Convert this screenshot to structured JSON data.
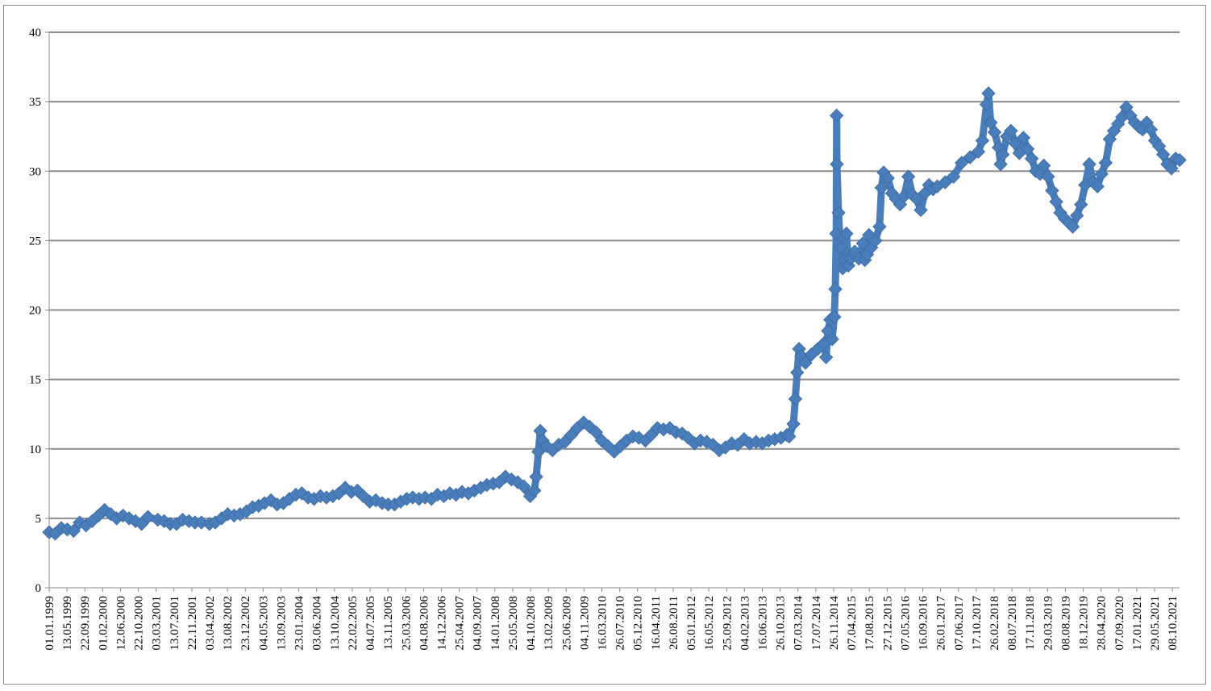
{
  "chart_data": {
    "type": "line",
    "title": "",
    "xlabel": "",
    "ylabel": "",
    "ylim": [
      0,
      40
    ],
    "yticks": [
      0,
      5,
      10,
      15,
      20,
      25,
      30,
      35,
      40
    ],
    "grid": true,
    "legend": "none",
    "marker": "diamond",
    "colors": {
      "series": "#4a7ebb",
      "grid": "#8c8c8c",
      "axis": "#8c8c8c"
    },
    "xdomain": [
      "01.01.1999",
      "30.11.2021"
    ],
    "xticks": [
      "01.01.1999",
      "13.05.1999",
      "22.09.1999",
      "01.02.2000",
      "12.06.2000",
      "22.10.2000",
      "03.03.2001",
      "13.07.2001",
      "22.11.2001",
      "03.04.2002",
      "13.08.2002",
      "23.12.2002",
      "04.05.2003",
      "13.09.2003",
      "23.01.2004",
      "03.06.2004",
      "13.10.2004",
      "22.02.2005",
      "04.07.2005",
      "13.11.2005",
      "25.03.2006",
      "04.08.2006",
      "14.12.2006",
      "25.04.2007",
      "04.09.2007",
      "14.01.2008",
      "25.05.2008",
      "04.10.2008",
      "13.02.2009",
      "25.06.2009",
      "04.11.2009",
      "16.03.2010",
      "26.07.2010",
      "05.12.2010",
      "16.04.2011",
      "26.08.2011",
      "05.01.2012",
      "16.05.2012",
      "25.09.2012",
      "04.02.2013",
      "16.06.2013",
      "26.10.2013",
      "07.03.2014",
      "17.07.2014",
      "26.11.2014",
      "07.04.2015",
      "17.08.2015",
      "27.12.2015",
      "07.05.2016",
      "16.09.2016",
      "26.01.2017",
      "07.06.2017",
      "17.10.2017",
      "26.02.2018",
      "08.07.2018",
      "17.11.2018",
      "29.03.2019",
      "08.08.2019",
      "18.12.2019",
      "28.04.2020",
      "07.09.2020",
      "17.01.2021",
      "29.05.2021",
      "08.10.2021"
    ],
    "series": [
      {
        "name": "",
        "points": [
          [
            "01.01.1999",
            4.0
          ],
          [
            "15.02.1999",
            3.9
          ],
          [
            "01.04.1999",
            4.3
          ],
          [
            "15.05.1999",
            4.2
          ],
          [
            "01.07.1999",
            4.1
          ],
          [
            "15.08.1999",
            4.7
          ],
          [
            "01.10.1999",
            4.5
          ],
          [
            "15.11.1999",
            4.8
          ],
          [
            "01.01.2000",
            5.2
          ],
          [
            "15.02.2000",
            5.6
          ],
          [
            "01.04.2000",
            5.3
          ],
          [
            "15.05.2000",
            5.0
          ],
          [
            "01.07.2000",
            5.2
          ],
          [
            "15.08.2000",
            5.0
          ],
          [
            "01.10.2000",
            4.8
          ],
          [
            "15.11.2000",
            4.6
          ],
          [
            "01.01.2001",
            5.1
          ],
          [
            "15.03.2001",
            4.9
          ],
          [
            "01.05.2001",
            4.8
          ],
          [
            "15.06.2001",
            4.6
          ],
          [
            "01.08.2001",
            4.6
          ],
          [
            "15.09.2001",
            4.9
          ],
          [
            "01.11.2001",
            4.8
          ],
          [
            "15.12.2001",
            4.7
          ],
          [
            "01.02.2002",
            4.7
          ],
          [
            "01.04.2002",
            4.6
          ],
          [
            "15.05.2002",
            4.7
          ],
          [
            "01.07.2002",
            5.0
          ],
          [
            "15.08.2002",
            5.3
          ],
          [
            "01.10.2002",
            5.2
          ],
          [
            "15.11.2002",
            5.3
          ],
          [
            "01.01.2003",
            5.5
          ],
          [
            "15.02.2003",
            5.8
          ],
          [
            "01.04.2003",
            5.9
          ],
          [
            "15.05.2003",
            6.1
          ],
          [
            "01.07.2003",
            6.3
          ],
          [
            "15.08.2003",
            6.0
          ],
          [
            "01.10.2003",
            6.1
          ],
          [
            "15.11.2003",
            6.4
          ],
          [
            "01.01.2004",
            6.7
          ],
          [
            "15.02.2004",
            6.8
          ],
          [
            "01.04.2004",
            6.5
          ],
          [
            "15.05.2004",
            6.4
          ],
          [
            "01.07.2004",
            6.6
          ],
          [
            "15.08.2004",
            6.5
          ],
          [
            "01.10.2004",
            6.6
          ],
          [
            "15.11.2004",
            6.8
          ],
          [
            "01.01.2005",
            7.2
          ],
          [
            "15.02.2005",
            6.9
          ],
          [
            "01.04.2005",
            7.0
          ],
          [
            "15.05.2005",
            6.6
          ],
          [
            "01.07.2005",
            6.2
          ],
          [
            "15.08.2005",
            6.3
          ],
          [
            "01.10.2005",
            6.1
          ],
          [
            "15.11.2005",
            6.0
          ],
          [
            "01.01.2006",
            6.0
          ],
          [
            "15.02.2006",
            6.2
          ],
          [
            "01.04.2006",
            6.4
          ],
          [
            "15.05.2006",
            6.5
          ],
          [
            "01.07.2006",
            6.4
          ],
          [
            "15.08.2006",
            6.5
          ],
          [
            "01.10.2006",
            6.4
          ],
          [
            "15.11.2006",
            6.7
          ],
          [
            "01.01.2007",
            6.6
          ],
          [
            "15.02.2007",
            6.8
          ],
          [
            "01.04.2007",
            6.7
          ],
          [
            "15.05.2007",
            6.9
          ],
          [
            "01.07.2007",
            6.8
          ],
          [
            "15.08.2007",
            7.0
          ],
          [
            "01.10.2007",
            7.2
          ],
          [
            "15.11.2007",
            7.4
          ],
          [
            "01.01.2008",
            7.5
          ],
          [
            "15.02.2008",
            7.6
          ],
          [
            "01.04.2008",
            8.0
          ],
          [
            "15.05.2008",
            7.8
          ],
          [
            "01.07.2008",
            7.6
          ],
          [
            "15.08.2008",
            7.3
          ],
          [
            "01.10.2008",
            6.6
          ],
          [
            "01.11.2008",
            7.0
          ],
          [
            "15.11.2008",
            8.0
          ],
          [
            "01.12.2008",
            9.8
          ],
          [
            "15.12.2008",
            11.3
          ],
          [
            "01.01.2009",
            10.6
          ],
          [
            "01.02.2009",
            10.2
          ],
          [
            "15.03.2009",
            9.9
          ],
          [
            "01.05.2009",
            10.3
          ],
          [
            "15.06.2009",
            10.5
          ],
          [
            "01.08.2009",
            11.0
          ],
          [
            "15.09.2009",
            11.5
          ],
          [
            "01.11.2009",
            11.9
          ],
          [
            "15.12.2009",
            11.6
          ],
          [
            "01.02.2010",
            11.2
          ],
          [
            "15.03.2010",
            10.6
          ],
          [
            "01.05.2010",
            10.2
          ],
          [
            "15.06.2010",
            9.8
          ],
          [
            "01.08.2010",
            10.2
          ],
          [
            "15.09.2010",
            10.6
          ],
          [
            "01.11.2010",
            10.9
          ],
          [
            "15.12.2010",
            10.8
          ],
          [
            "01.02.2011",
            10.6
          ],
          [
            "15.03.2011",
            11.0
          ],
          [
            "01.05.2011",
            11.5
          ],
          [
            "15.06.2011",
            11.4
          ],
          [
            "01.08.2011",
            11.5
          ],
          [
            "15.09.2011",
            11.2
          ],
          [
            "01.11.2011",
            11.1
          ],
          [
            "15.12.2011",
            10.8
          ],
          [
            "01.02.2012",
            10.4
          ],
          [
            "15.03.2012",
            10.6
          ],
          [
            "01.05.2012",
            10.5
          ],
          [
            "15.06.2012",
            10.3
          ],
          [
            "01.08.2012",
            9.9
          ],
          [
            "15.09.2012",
            10.1
          ],
          [
            "01.11.2012",
            10.4
          ],
          [
            "15.12.2012",
            10.3
          ],
          [
            "01.02.2013",
            10.7
          ],
          [
            "15.03.2013",
            10.4
          ],
          [
            "01.05.2013",
            10.5
          ],
          [
            "15.06.2013",
            10.4
          ],
          [
            "01.08.2013",
            10.6
          ],
          [
            "15.09.2013",
            10.7
          ],
          [
            "01.11.2013",
            10.8
          ],
          [
            "15.12.2013",
            11.0
          ],
          [
            "01.01.2014",
            10.9
          ],
          [
            "01.02.2014",
            11.8
          ],
          [
            "15.02.2014",
            13.6
          ],
          [
            "01.03.2014",
            15.5
          ],
          [
            "15.03.2014",
            17.2
          ],
          [
            "01.04.2014",
            16.7
          ],
          [
            "01.05.2014",
            16.2
          ],
          [
            "15.06.2014",
            16.8
          ],
          [
            "01.08.2014",
            17.2
          ],
          [
            "15.09.2014",
            17.6
          ],
          [
            "01.10.2014",
            16.6
          ],
          [
            "15.10.2014",
            18.5
          ],
          [
            "01.11.2014",
            19.3
          ],
          [
            "15.11.2014",
            17.9
          ],
          [
            "01.12.2014",
            19.5
          ],
          [
            "08.12.2014",
            21.5
          ],
          [
            "15.12.2014",
            25.5
          ],
          [
            "18.12.2014",
            34.0
          ],
          [
            "20.12.2014",
            30.5
          ],
          [
            "01.01.2015",
            27.0
          ],
          [
            "15.01.2015",
            24.5
          ],
          [
            "01.02.2015",
            23.0
          ],
          [
            "15.02.2015",
            23.6
          ],
          [
            "01.03.2015",
            25.5
          ],
          [
            "15.03.2015",
            23.2
          ],
          [
            "01.04.2015",
            23.7
          ],
          [
            "01.05.2015",
            24.2
          ],
          [
            "01.06.2015",
            23.7
          ],
          [
            "01.07.2015",
            24.8
          ],
          [
            "15.07.2015",
            23.6
          ],
          [
            "01.08.2015",
            24.0
          ],
          [
            "15.08.2015",
            25.4
          ],
          [
            "01.09.2015",
            24.5
          ],
          [
            "01.10.2015",
            25.0
          ],
          [
            "01.11.2015",
            26.0
          ],
          [
            "15.11.2015",
            28.8
          ],
          [
            "01.12.2015",
            29.9
          ],
          [
            "01.01.2016",
            29.5
          ],
          [
            "01.02.2016",
            28.4
          ],
          [
            "01.03.2016",
            28.0
          ],
          [
            "01.04.2016",
            27.6
          ],
          [
            "01.05.2016",
            28.2
          ],
          [
            "01.06.2016",
            29.6
          ],
          [
            "01.07.2016",
            28.3
          ],
          [
            "01.08.2016",
            28.0
          ],
          [
            "01.09.2016",
            27.2
          ],
          [
            "01.10.2016",
            28.4
          ],
          [
            "01.11.2016",
            29.0
          ],
          [
            "01.12.2016",
            28.7
          ],
          [
            "01.01.2017",
            28.9
          ],
          [
            "01.03.2017",
            29.2
          ],
          [
            "01.05.2017",
            29.6
          ],
          [
            "01.07.2017",
            30.6
          ],
          [
            "01.09.2017",
            31.0
          ],
          [
            "01.11.2017",
            31.4
          ],
          [
            "01.12.2017",
            32.2
          ],
          [
            "01.01.2018",
            34.8
          ],
          [
            "15.01.2018",
            35.6
          ],
          [
            "01.02.2018",
            33.5
          ],
          [
            "01.03.2018",
            32.8
          ],
          [
            "01.04.2018",
            31.7
          ],
          [
            "15.04.2018",
            30.5
          ],
          [
            "01.05.2018",
            31.2
          ],
          [
            "01.06.2018",
            32.5
          ],
          [
            "01.07.2018",
            32.9
          ],
          [
            "01.08.2018",
            32.0
          ],
          [
            "01.09.2018",
            31.3
          ],
          [
            "01.10.2018",
            32.4
          ],
          [
            "01.11.2018",
            31.6
          ],
          [
            "01.12.2018",
            30.9
          ],
          [
            "01.01.2019",
            30.0
          ],
          [
            "01.02.2019",
            29.8
          ],
          [
            "01.03.2019",
            30.4
          ],
          [
            "01.04.2019",
            29.6
          ],
          [
            "01.05.2019",
            28.6
          ],
          [
            "01.06.2019",
            27.8
          ],
          [
            "01.07.2019",
            27.0
          ],
          [
            "01.08.2019",
            26.6
          ],
          [
            "01.09.2019",
            26.3
          ],
          [
            "01.10.2019",
            26.0
          ],
          [
            "01.11.2019",
            26.8
          ],
          [
            "01.12.2019",
            27.6
          ],
          [
            "01.01.2020",
            29.0
          ],
          [
            "01.02.2020",
            30.5
          ],
          [
            "01.03.2020",
            29.2
          ],
          [
            "01.04.2020",
            28.9
          ],
          [
            "01.05.2020",
            29.8
          ],
          [
            "01.06.2020",
            30.6
          ],
          [
            "01.07.2020",
            32.3
          ],
          [
            "01.08.2020",
            32.9
          ],
          [
            "01.09.2020",
            33.4
          ],
          [
            "01.10.2020",
            33.9
          ],
          [
            "01.11.2020",
            34.6
          ],
          [
            "01.12.2020",
            34.0
          ],
          [
            "01.01.2021",
            33.5
          ],
          [
            "01.02.2021",
            33.2
          ],
          [
            "01.03.2021",
            33.0
          ],
          [
            "01.04.2021",
            33.5
          ],
          [
            "01.05.2021",
            33.0
          ],
          [
            "01.06.2021",
            32.2
          ],
          [
            "01.07.2021",
            31.8
          ],
          [
            "01.08.2021",
            31.2
          ],
          [
            "01.09.2021",
            30.5
          ],
          [
            "01.10.2021",
            30.2
          ],
          [
            "01.11.2021",
            30.9
          ],
          [
            "30.11.2021",
            30.8
          ]
        ]
      }
    ]
  }
}
